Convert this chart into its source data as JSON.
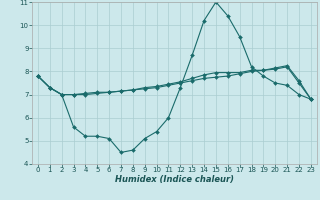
{
  "xlabel": "Humidex (Indice chaleur)",
  "background_color": "#cce8eb",
  "grid_color": "#aacdd1",
  "line_color": "#1a6b6b",
  "xlim": [
    -0.5,
    23.5
  ],
  "ylim": [
    4,
    11
  ],
  "xticks": [
    0,
    1,
    2,
    3,
    4,
    5,
    6,
    7,
    8,
    9,
    10,
    11,
    12,
    13,
    14,
    15,
    16,
    17,
    18,
    19,
    20,
    21,
    22,
    23
  ],
  "yticks": [
    4,
    5,
    6,
    7,
    8,
    9,
    10,
    11
  ],
  "series1_x": [
    0,
    1,
    2,
    3,
    4,
    5,
    6,
    7,
    8,
    9,
    10,
    11,
    12,
    13,
    14,
    15,
    16,
    17,
    18,
    19,
    20,
    21,
    22,
    23
  ],
  "series1_y": [
    7.8,
    7.3,
    7.0,
    5.6,
    5.2,
    5.2,
    5.1,
    4.5,
    4.6,
    5.1,
    5.4,
    6.0,
    7.3,
    8.7,
    10.2,
    11.0,
    10.4,
    9.5,
    8.2,
    7.8,
    7.5,
    7.4,
    7.0,
    6.8
  ],
  "series2_x": [
    0,
    1,
    2,
    3,
    4,
    5,
    6,
    7,
    8,
    9,
    10,
    11,
    12,
    13,
    14,
    15,
    16,
    17,
    18,
    19,
    20,
    21,
    22,
    23
  ],
  "series2_y": [
    7.8,
    7.3,
    7.0,
    7.0,
    7.0,
    7.05,
    7.1,
    7.15,
    7.2,
    7.25,
    7.3,
    7.4,
    7.5,
    7.6,
    7.7,
    7.75,
    7.8,
    7.9,
    8.0,
    8.05,
    8.1,
    8.2,
    7.5,
    6.8
  ],
  "series3_x": [
    0,
    1,
    2,
    3,
    4,
    5,
    6,
    7,
    8,
    9,
    10,
    11,
    12,
    13,
    14,
    15,
    16,
    17,
    18,
    19,
    20,
    21,
    22,
    23
  ],
  "series3_y": [
    7.8,
    7.3,
    7.0,
    7.0,
    7.05,
    7.1,
    7.1,
    7.15,
    7.2,
    7.3,
    7.35,
    7.45,
    7.55,
    7.7,
    7.85,
    7.95,
    7.95,
    7.95,
    8.05,
    8.05,
    8.15,
    8.25,
    7.6,
    6.8
  ],
  "tick_fontsize": 5.0,
  "xlabel_fontsize": 6.0
}
